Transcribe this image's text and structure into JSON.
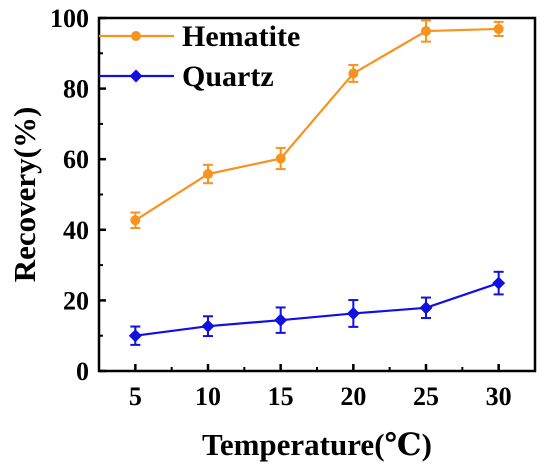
{
  "chart_data": {
    "type": "line",
    "xlabel": "Temperature(℃)",
    "ylabel": "Recovery(%)",
    "xlim": [
      2.5,
      32.5
    ],
    "ylim": [
      0,
      100
    ],
    "x": [
      5,
      10,
      15,
      20,
      25,
      30
    ],
    "xticks": [
      "5",
      "10",
      "15",
      "20",
      "25",
      "30"
    ],
    "yticks": [
      "0",
      "20",
      "40",
      "60",
      "80",
      "100"
    ],
    "legend_position": "top-left",
    "grid": false,
    "series": [
      {
        "name": "Hematite",
        "color": "#F7931E",
        "marker": "circle",
        "values": [
          42.7,
          55.8,
          60.2,
          84.3,
          96.3,
          96.9
        ],
        "errors": [
          2.2,
          2.6,
          3.0,
          2.4,
          3.0,
          2.0
        ]
      },
      {
        "name": "Quartz",
        "color": "#1010E0",
        "marker": "diamond",
        "values": [
          10.0,
          12.7,
          14.4,
          16.3,
          17.9,
          24.9
        ],
        "errors": [
          2.6,
          2.8,
          3.6,
          3.8,
          2.9,
          3.2
        ]
      }
    ]
  }
}
